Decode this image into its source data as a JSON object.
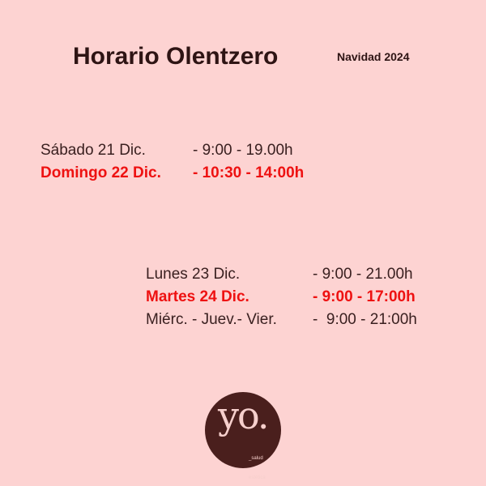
{
  "header": {
    "title": "Horario Olentzero",
    "subtitle": "Navidad 2024"
  },
  "group1": [
    {
      "day": "Sábado 21 Dic.",
      "hours": "- 9:00 - 19.00h",
      "highlight": false
    },
    {
      "day": "Domingo 22 Dic.",
      "hours": "- 10:30 - 14:00h",
      "highlight": true
    }
  ],
  "group2": [
    {
      "day": "Lunes 23 Dic.",
      "hours": "- 9:00 - 21.00h",
      "highlight": false
    },
    {
      "day": "Martes 24 Dic.",
      "hours": "- 9:00 - 17:00h",
      "highlight": true
    },
    {
      "day": "Miérc. - Juev.- Vier.",
      "hours": "-  9:00 - 21:00h",
      "highlight": false
    }
  ],
  "logo": {
    "mark": "yo.",
    "line1": "_salud",
    "line2": "estética"
  },
  "colors": {
    "background": "#fdd3d2",
    "highlight": "#ee1111",
    "logo": "#4a1f1d"
  }
}
